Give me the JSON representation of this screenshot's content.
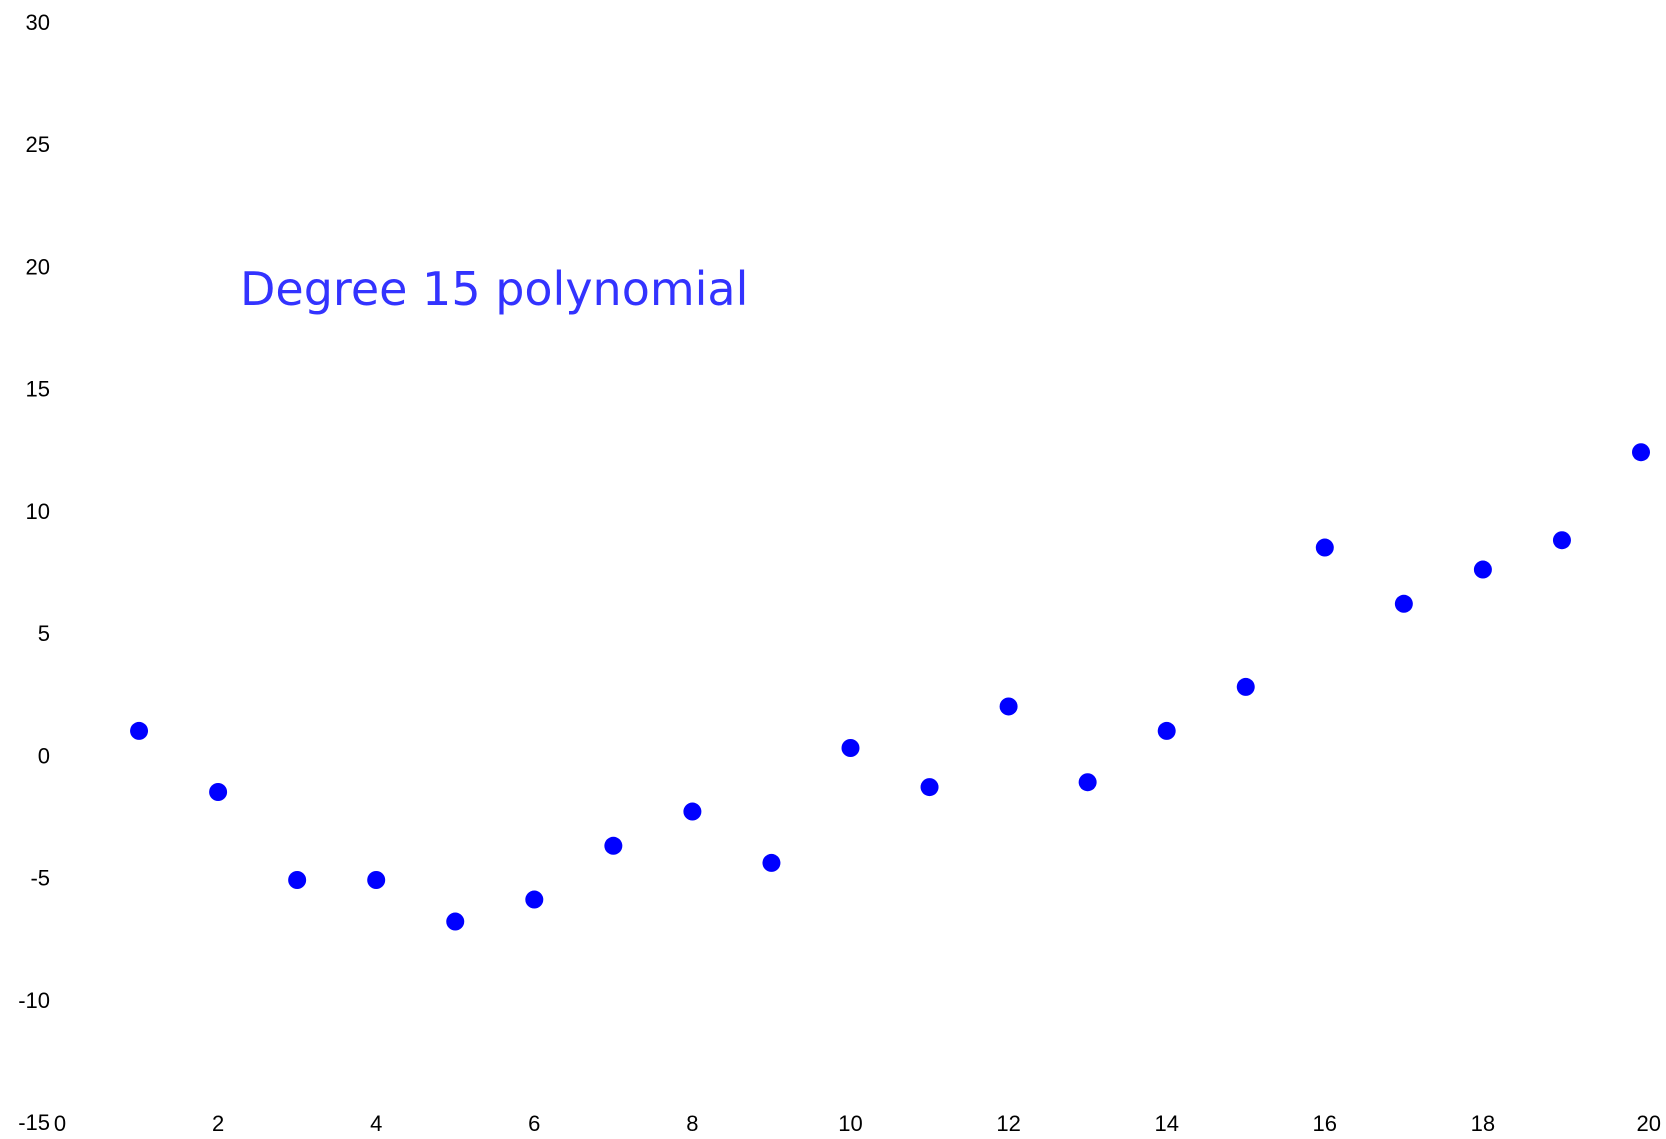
{
  "chart_data": {
    "type": "scatter",
    "title": "",
    "xlabel": "",
    "ylabel": "",
    "xlim": [
      0,
      20
    ],
    "ylim": [
      -15,
      30
    ],
    "x_ticks": [
      "0",
      "2",
      "4",
      "6",
      "8",
      "10",
      "12",
      "14",
      "16",
      "18",
      "20"
    ],
    "y_ticks": [
      "30",
      "25",
      "20",
      "15",
      "10",
      "5",
      "0",
      "-5",
      "-10",
      "-15"
    ],
    "grid": false,
    "annotation": "Degree 15 polynomial",
    "colors": {
      "points": "#0000ff",
      "annotation": "#3333ff",
      "text": "#000000"
    },
    "points": [
      {
        "x": 1,
        "y": 1.0
      },
      {
        "x": 2,
        "y": -1.5
      },
      {
        "x": 3,
        "y": -5.1
      },
      {
        "x": 4,
        "y": -5.1
      },
      {
        "x": 5,
        "y": -6.8
      },
      {
        "x": 6,
        "y": -5.9
      },
      {
        "x": 7,
        "y": -3.7
      },
      {
        "x": 8,
        "y": -2.3
      },
      {
        "x": 9,
        "y": -4.4
      },
      {
        "x": 10,
        "y": 0.3
      },
      {
        "x": 11,
        "y": -1.3
      },
      {
        "x": 12,
        "y": 2.0
      },
      {
        "x": 13,
        "y": -1.1
      },
      {
        "x": 14,
        "y": 1.0
      },
      {
        "x": 15,
        "y": 2.8
      },
      {
        "x": 16,
        "y": 8.5
      },
      {
        "x": 17,
        "y": 6.2
      },
      {
        "x": 18,
        "y": 7.6
      },
      {
        "x": 19,
        "y": 8.8
      },
      {
        "x": 20,
        "y": 12.4
      }
    ]
  }
}
